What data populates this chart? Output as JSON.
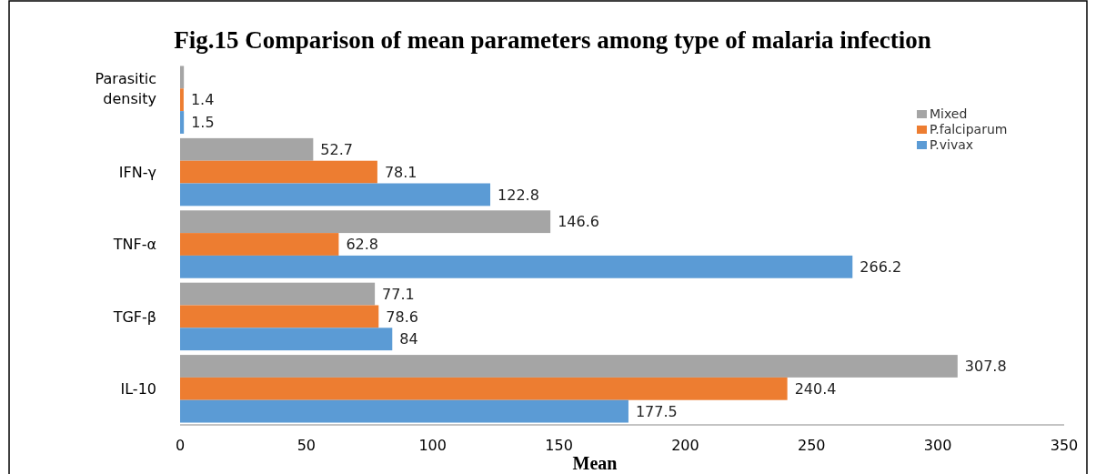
{
  "chart_data": {
    "type": "bar",
    "orientation": "horizontal",
    "title": "Fig.15 Comparison of mean parameters among type of malaria infection",
    "xlabel": "Mean",
    "categories": [
      "Parasitic density",
      "IFN-γ",
      "TNF-α",
      "TGF-β",
      "IL-10"
    ],
    "series": [
      {
        "name": "Mixed",
        "color": "#a5a5a5",
        "values": [
          1.5,
          52.7,
          146.6,
          77.1,
          307.8
        ],
        "value_labels": [
          null,
          "52.7",
          "146.6",
          "77.1",
          "307.8"
        ]
      },
      {
        "name": "P.falciparum",
        "color": "#ed7d31",
        "values": [
          1.4,
          78.1,
          62.8,
          78.6,
          240.4
        ],
        "value_labels": [
          "1.4",
          "78.1",
          "62.8",
          "78.6",
          "240.4"
        ]
      },
      {
        "name": "P.vivax",
        "color": "#5b9bd5",
        "values": [
          1.5,
          122.8,
          266.2,
          84,
          177.5
        ],
        "value_labels": [
          "1.5",
          "122.8",
          "266.2",
          "84",
          "177.5"
        ]
      }
    ],
    "xlim": [
      0,
      350
    ],
    "xticks": [
      0,
      50,
      100,
      150,
      200,
      250,
      300,
      350
    ],
    "grid": false,
    "legend": "top right"
  }
}
